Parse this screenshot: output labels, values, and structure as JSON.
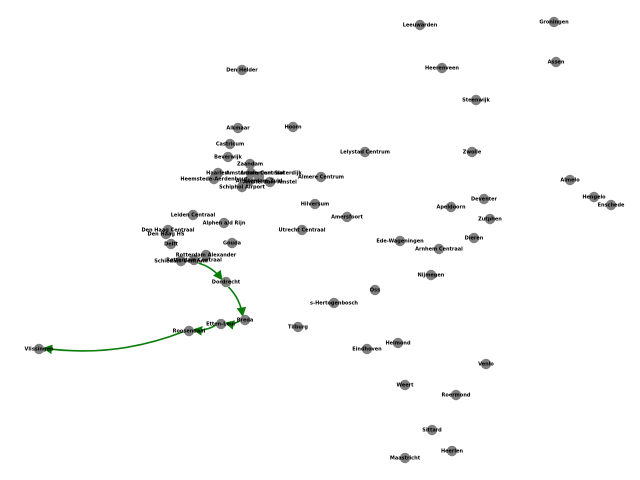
{
  "route_color": "#0a7d0a",
  "node_color": "#808080",
  "stations": [
    {
      "id": "leeuwarden",
      "name": "Leeuwarden"
    },
    {
      "id": "groningen",
      "name": "Groningen"
    },
    {
      "id": "assen",
      "name": "Assen"
    },
    {
      "id": "heerenveen",
      "name": "Heerenveen"
    },
    {
      "id": "den-helder",
      "name": "Den Helder"
    },
    {
      "id": "steenwijk",
      "name": "Steenwijk"
    },
    {
      "id": "alkmaar",
      "name": "Alkmaar"
    },
    {
      "id": "hoorn",
      "name": "Hoorn"
    },
    {
      "id": "lelystad-centrum",
      "name": "Lelystad Centrum"
    },
    {
      "id": "zwolle",
      "name": "Zwolle"
    },
    {
      "id": "castricum",
      "name": "Castricum"
    },
    {
      "id": "beverwijk",
      "name": "Beverwijk"
    },
    {
      "id": "zaandam",
      "name": "Zaandam"
    },
    {
      "id": "haarlem",
      "name": "Haarlem"
    },
    {
      "id": "amsterdam-centraal",
      "name": "Amsterdam Centraal"
    },
    {
      "id": "amsterdam-sloterdijk",
      "name": "Amsterdam Sloterdijk"
    },
    {
      "id": "heemstede-aerdenhout",
      "name": "Heemstede-Aerdenhout"
    },
    {
      "id": "amsterdam-zuid",
      "name": "Amsterdam Zuid"
    },
    {
      "id": "amsterdam-amstel",
      "name": "Amsterdam Amstel"
    },
    {
      "id": "schiphol-airport",
      "name": "Schiphol Airport"
    },
    {
      "id": "almere-centrum",
      "name": "Almere Centrum"
    },
    {
      "id": "almelo",
      "name": "Almelo"
    },
    {
      "id": "hengelo",
      "name": "Hengelo"
    },
    {
      "id": "enschede",
      "name": "Enschede"
    },
    {
      "id": "deventer",
      "name": "Deventer"
    },
    {
      "id": "apeldoorn",
      "name": "Apeldoorn"
    },
    {
      "id": "zutphen",
      "name": "Zutphen"
    },
    {
      "id": "hilversum",
      "name": "Hilversum"
    },
    {
      "id": "amersfoort",
      "name": "Amersfoort"
    },
    {
      "id": "leiden-centraal",
      "name": "Leiden Centraal"
    },
    {
      "id": "alphen-ad-rijn",
      "name": "Alphen a/d Rijn"
    },
    {
      "id": "utrecht-centraal",
      "name": "Utrecht Centraal"
    },
    {
      "id": "den-haag-centraal",
      "name": "Den Haag Centraal"
    },
    {
      "id": "den-haag-hs",
      "name": "Den Haag HS"
    },
    {
      "id": "delft",
      "name": "Delft"
    },
    {
      "id": "gouda",
      "name": "Gouda"
    },
    {
      "id": "ede-wageningen",
      "name": "Ede-Wageningen"
    },
    {
      "id": "dieren",
      "name": "Dieren"
    },
    {
      "id": "arnhem-centraal",
      "name": "Arnhem Centraal"
    },
    {
      "id": "rotterdam-alexander",
      "name": "Rotterdam Alexander"
    },
    {
      "id": "schiedam-centrum",
      "name": "Schiedam Centrum"
    },
    {
      "id": "rotterdam-centraal",
      "name": "Rotterdam Centraal"
    },
    {
      "id": "dordrecht",
      "name": "Dordrecht"
    },
    {
      "id": "nijmegen",
      "name": "Nijmegen"
    },
    {
      "id": "oss",
      "name": "Oss"
    },
    {
      "id": "s-hertogenbosch",
      "name": "s-Hertogenbosch"
    },
    {
      "id": "breda",
      "name": "Breda"
    },
    {
      "id": "etten-leur",
      "name": "Etten-Leur"
    },
    {
      "id": "roosendaal",
      "name": "Roosendaal"
    },
    {
      "id": "tilburg",
      "name": "Tilburg"
    },
    {
      "id": "vlissingen",
      "name": "Vlissingen"
    },
    {
      "id": "helmond",
      "name": "Helmond"
    },
    {
      "id": "eindhoven",
      "name": "Eindhoven"
    },
    {
      "id": "venlo",
      "name": "Venlo"
    },
    {
      "id": "weert",
      "name": "Weert"
    },
    {
      "id": "roermond",
      "name": "Roermond"
    },
    {
      "id": "sittard",
      "name": "Sittard"
    },
    {
      "id": "heerlen",
      "name": "Heerlen"
    },
    {
      "id": "maastricht",
      "name": "Maastricht"
    }
  ],
  "route": [
    "rotterdam-centraal",
    "dordrecht",
    "breda",
    "etten-leur",
    "roosendaal",
    "vlissingen"
  ]
}
